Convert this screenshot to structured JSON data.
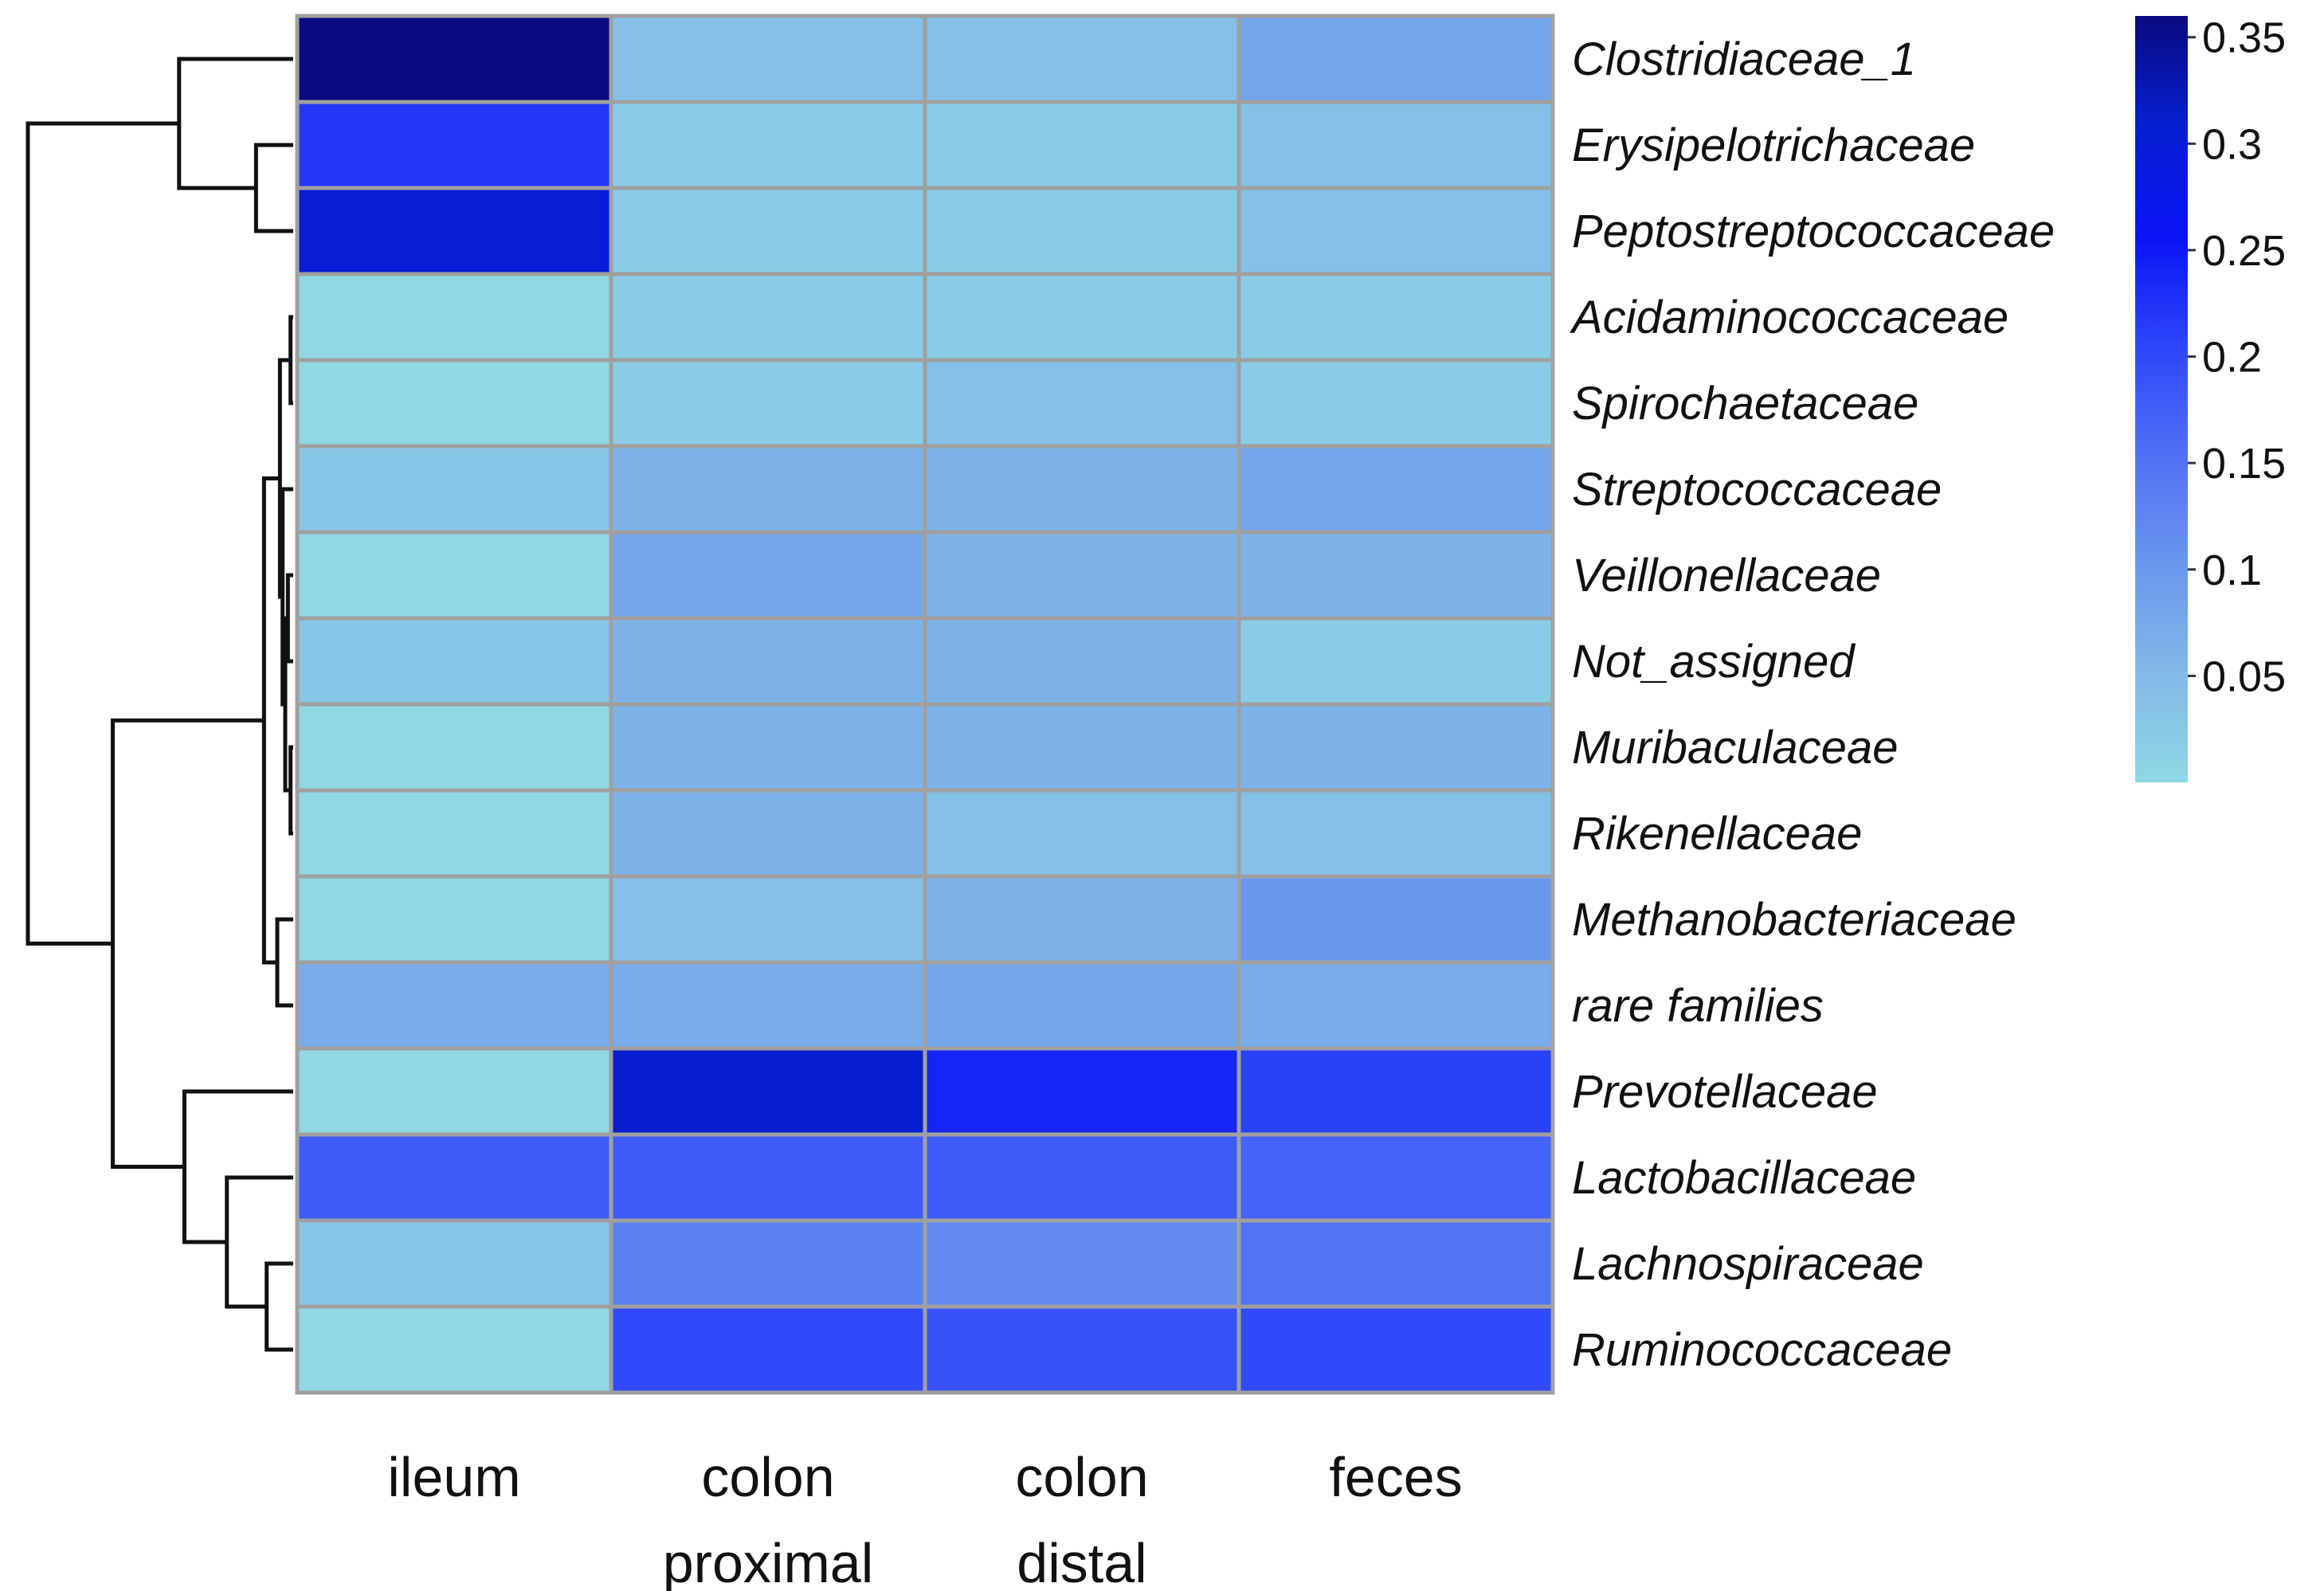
{
  "chart_data": {
    "type": "heatmap",
    "columns": [
      {
        "line1": "ileum",
        "line2": ""
      },
      {
        "line1": "colon",
        "line2": "proximal"
      },
      {
        "line1": "colon",
        "line2": "distal"
      },
      {
        "line1": "feces",
        "line2": ""
      }
    ],
    "rows": [
      "Clostridiaceae_1",
      "Erysipelotrichaceae",
      "Peptostreptococcaceae",
      "Acidaminococcaceae",
      "Spirochaetaceae",
      "Streptococcaceae",
      "Veillonellaceae",
      "Not_assigned",
      "Muribaculaceae",
      "Rikenellaceae",
      "Methanobacteriaceae",
      "rare families",
      "Prevotellaceae",
      "Lactobacillaceae",
      "Lachnospiraceae",
      "Ruminococcaceae"
    ],
    "values": [
      [
        0.36,
        0.04,
        0.04,
        0.08
      ],
      [
        0.22,
        0.02,
        0.02,
        0.04
      ],
      [
        0.3,
        0.02,
        0.02,
        0.04
      ],
      [
        0.0,
        0.02,
        0.02,
        0.02
      ],
      [
        0.0,
        0.02,
        0.04,
        0.02
      ],
      [
        0.03,
        0.06,
        0.06,
        0.08
      ],
      [
        0.0,
        0.08,
        0.06,
        0.06
      ],
      [
        0.03,
        0.06,
        0.06,
        0.02
      ],
      [
        0.0,
        0.06,
        0.06,
        0.06
      ],
      [
        0.0,
        0.06,
        0.04,
        0.04
      ],
      [
        0.0,
        0.04,
        0.06,
        0.1
      ],
      [
        0.07,
        0.07,
        0.08,
        0.07
      ],
      [
        0.0,
        0.31,
        0.24,
        0.21
      ],
      [
        0.18,
        0.18,
        0.18,
        0.17
      ],
      [
        0.03,
        0.13,
        0.12,
        0.15
      ],
      [
        0.0,
        0.2,
        0.19,
        0.2
      ]
    ],
    "colorbar": {
      "min": 0.0,
      "max": 0.36,
      "ticks": [
        0.05,
        0.1,
        0.15,
        0.2,
        0.25,
        0.3,
        0.35
      ],
      "tick_labels": [
        "0.05",
        "0.1",
        "0.15",
        "0.2",
        "0.25",
        "0.3",
        "0.35"
      ],
      "colors": [
        "#8fd8e4",
        "#82b9e8",
        "#6a96ee",
        "#4f70f4",
        "#2d45fa",
        "#0a13f5",
        "#061fd0",
        "#0a0a80"
      ]
    },
    "dendrogram": {
      "leaf_order": [
        0,
        1,
        2,
        3,
        4,
        5,
        6,
        7,
        8,
        9,
        10,
        11,
        12,
        13,
        14,
        15
      ],
      "merges": [
        {
          "children": [
            "L1",
            "L2"
          ],
          "height": 0.14
        },
        {
          "children": [
            "L0",
            "M0"
          ],
          "height": 0.43
        },
        {
          "children": [
            "L3",
            "L4"
          ],
          "height": 0.01
        },
        {
          "children": [
            "L8",
            "L9"
          ],
          "height": 0.01
        },
        {
          "children": [
            "L6",
            "L7"
          ],
          "height": 0.02
        },
        {
          "children": [
            "M4",
            "M3"
          ],
          "height": 0.03
        },
        {
          "children": [
            "L5",
            "M5"
          ],
          "height": 0.04
        },
        {
          "children": [
            "M2",
            "M6"
          ],
          "height": 0.05
        },
        {
          "children": [
            "L10",
            "L11"
          ],
          "height": 0.06
        },
        {
          "children": [
            "M7",
            "M8"
          ],
          "height": 0.11
        },
        {
          "children": [
            "L14",
            "L15"
          ],
          "height": 0.1
        },
        {
          "children": [
            "L13",
            "M10"
          ],
          "height": 0.25
        },
        {
          "children": [
            "L12",
            "M11"
          ],
          "height": 0.41
        },
        {
          "children": [
            "M9",
            "M12"
          ],
          "height": 0.68
        },
        {
          "children": [
            "M1",
            "M13"
          ],
          "height": 1.0
        }
      ]
    }
  }
}
